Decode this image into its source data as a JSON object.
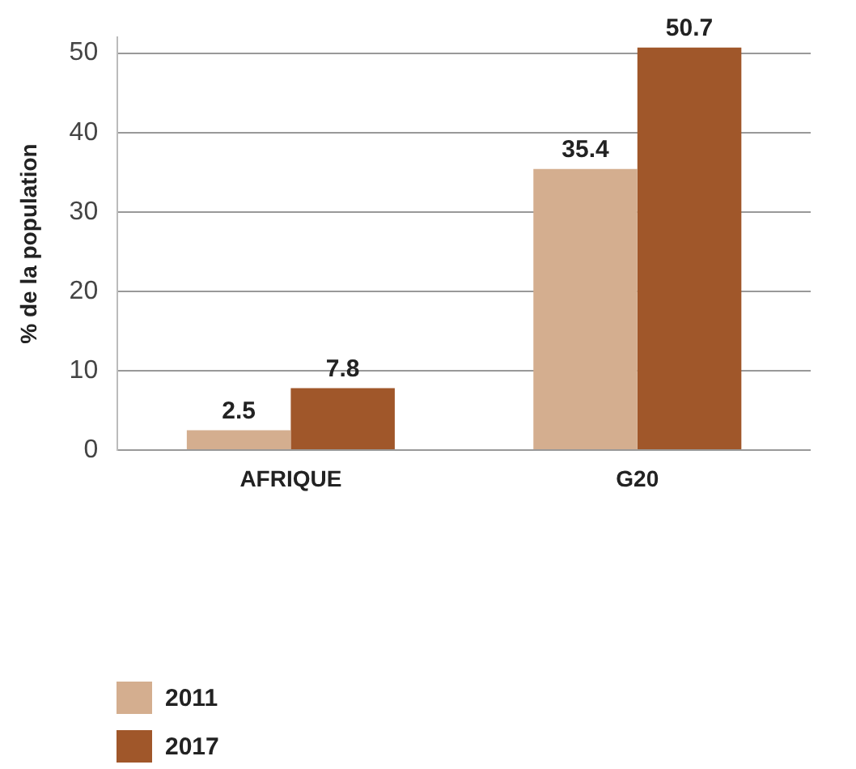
{
  "chart_data": {
    "type": "bar",
    "ylabel": "% de la population",
    "categories": [
      "AFRIQUE",
      "G20"
    ],
    "series": [
      {
        "name": "2011",
        "color": "#d4ae8f",
        "values": [
          2.5,
          35.4
        ]
      },
      {
        "name": "2017",
        "color": "#a0572a",
        "values": [
          7.8,
          50.7
        ]
      }
    ],
    "ylim": [
      0,
      52
    ],
    "yticks": [
      0,
      10,
      20,
      30,
      40,
      50
    ],
    "grid": "y",
    "legend": "bottom left",
    "data_labels": true
  }
}
